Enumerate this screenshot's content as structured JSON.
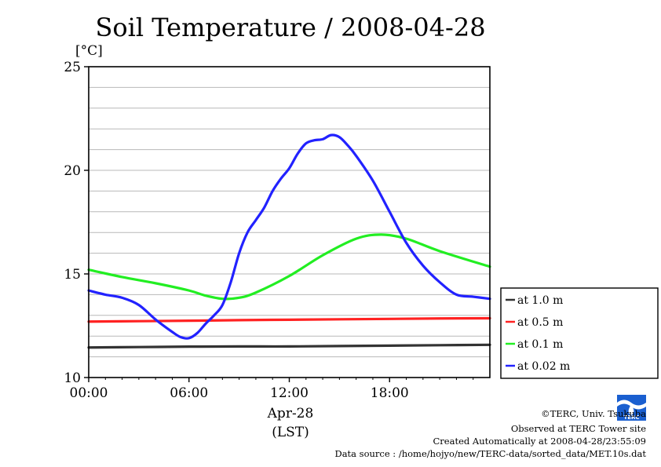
{
  "chart_data": {
    "type": "line",
    "title": "Soil Temperature / 2008-04-28",
    "ylabel": "[°C]",
    "xlabel_date": "Apr-28",
    "xlabel_zone": "(LST)",
    "ylim": [
      10,
      25
    ],
    "xlim": [
      0,
      24
    ],
    "yticks": [
      "10",
      "15",
      "20",
      "25"
    ],
    "xticks": [
      "00:00",
      "06:00",
      "12:00",
      "18:00"
    ],
    "grid": true,
    "legend_position": "right",
    "series": [
      {
        "name": "at 1.0 m",
        "color": "#333333",
        "x": [
          0,
          3,
          6,
          9,
          12,
          15,
          18,
          21,
          24
        ],
        "y": [
          11.45,
          11.47,
          11.49,
          11.5,
          11.5,
          11.52,
          11.54,
          11.56,
          11.58
        ]
      },
      {
        "name": "at 0.5 m",
        "color": "#ff2222",
        "x": [
          0,
          3,
          6,
          9,
          12,
          15,
          18,
          21,
          24
        ],
        "y": [
          12.7,
          12.72,
          12.74,
          12.77,
          12.79,
          12.81,
          12.83,
          12.85,
          12.86
        ]
      },
      {
        "name": "at 0.1 m",
        "color": "#22ee22",
        "x": [
          0,
          2,
          4,
          6,
          7,
          8,
          9,
          10,
          12,
          14,
          16,
          17.5,
          19,
          21,
          24
        ],
        "y": [
          15.2,
          14.85,
          14.55,
          14.2,
          13.95,
          13.8,
          13.85,
          14.1,
          14.9,
          15.9,
          16.7,
          16.9,
          16.7,
          16.1,
          15.35
        ]
      },
      {
        "name": "at 0.02 m",
        "color": "#2222ff",
        "x": [
          0,
          1,
          2,
          3,
          4,
          5,
          5.5,
          6,
          6.5,
          7,
          7.5,
          8,
          8.5,
          9,
          9.5,
          10,
          10.5,
          11,
          11.5,
          12,
          12.5,
          13,
          13.5,
          14,
          14.5,
          15,
          15.5,
          16,
          17,
          18,
          19,
          20,
          21,
          22,
          23,
          24
        ],
        "y": [
          14.2,
          14.0,
          13.85,
          13.5,
          12.8,
          12.2,
          11.95,
          11.9,
          12.15,
          12.6,
          13.0,
          13.5,
          14.6,
          16.0,
          17.0,
          17.6,
          18.2,
          19.0,
          19.6,
          20.1,
          20.8,
          21.3,
          21.45,
          21.5,
          21.7,
          21.6,
          21.2,
          20.7,
          19.5,
          18.0,
          16.5,
          15.4,
          14.6,
          14.0,
          13.9,
          13.8
        ]
      }
    ]
  },
  "credits": {
    "copyright": "©TERC, Univ. Tsukuba",
    "observed": "Observed at TERC Tower site",
    "created": "Created Automatically at 2008-04-28/23:55:09",
    "source": "Data source : /home/hojyo/new/TERC-data/sorted_data/MET.10s.dat",
    "logo_text": "TERC"
  }
}
